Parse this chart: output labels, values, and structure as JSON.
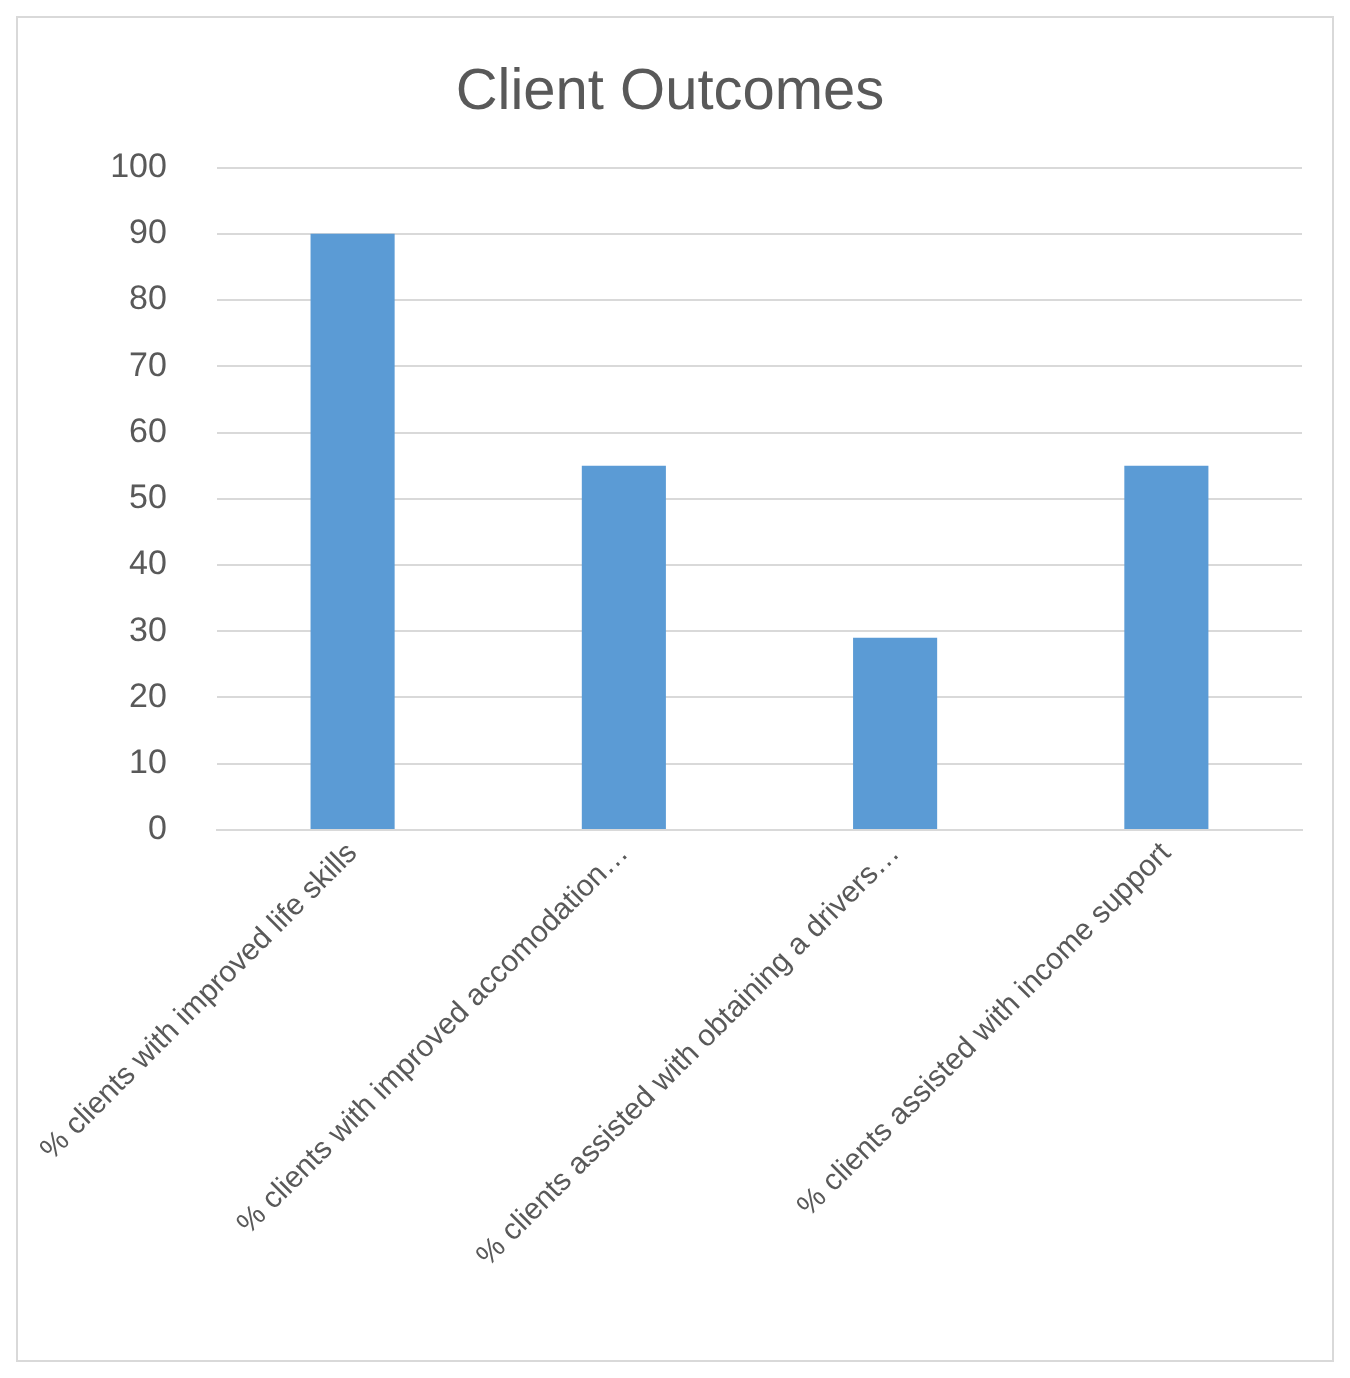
{
  "chart_data": {
    "type": "bar",
    "title": "Client Outcomes",
    "categories": [
      "% clients with improved life skills",
      "% clients with improved accomodation…",
      "% clients assisted with obtaining a drivers…",
      "% clients assisted with income support"
    ],
    "values": [
      90,
      55,
      29,
      55
    ],
    "color": "#5b9bd5",
    "ylim": [
      0,
      100
    ],
    "yticks": [
      0,
      10,
      20,
      30,
      40,
      50,
      60,
      70,
      80,
      90,
      100
    ],
    "grid": "y"
  }
}
